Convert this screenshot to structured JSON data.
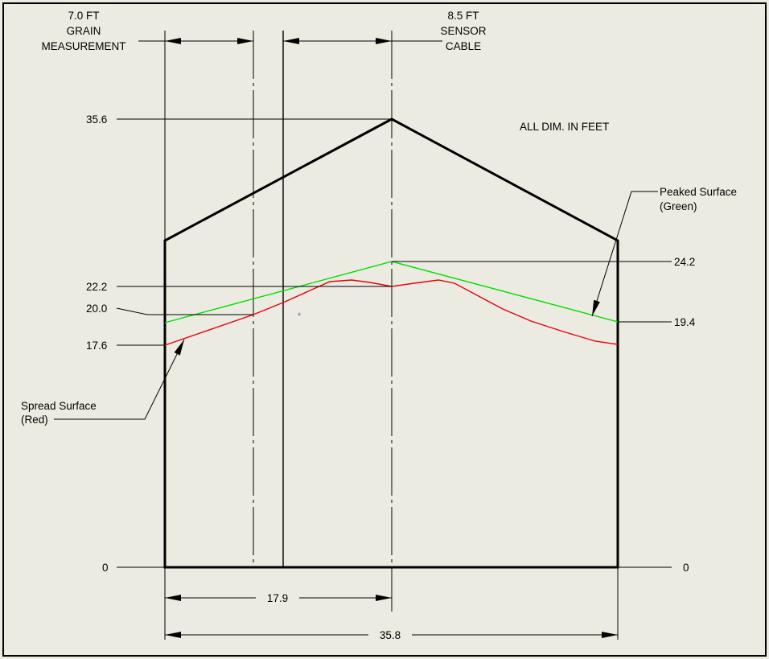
{
  "labels": {
    "grain_measurement": [
      "7.0 FT",
      "GRAIN",
      "MEASUREMENT"
    ],
    "sensor_cable": [
      "8.5 FT",
      "SENSOR",
      "CABLE"
    ],
    "units_note": "ALL DIM. IN FEET",
    "peaked_surface": [
      "Peaked Surface",
      "(Green)"
    ],
    "spread_surface": [
      "Spread Surface",
      "(Red)"
    ]
  },
  "dimensions": {
    "peak": "35.6",
    "peaked_center": "24.2",
    "spread_center": "22.2",
    "cable_level": "20.0",
    "spread_edge": "17.6",
    "peaked_edge": "19.4",
    "floor_left": "0",
    "floor_right": "0",
    "half_width": "17.9",
    "full_width": "35.8"
  },
  "colors": {
    "peaked_surface": "#00dd00",
    "spread_surface": "#e8000c",
    "outline": "#000000",
    "background": "#ecebe2"
  }
}
